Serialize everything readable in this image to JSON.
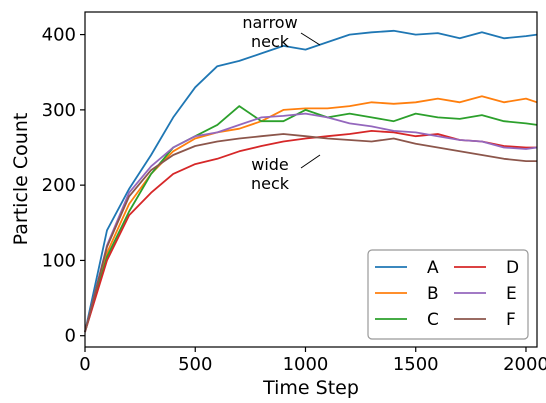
{
  "chart_data": {
    "type": "line",
    "title": "",
    "xlabel": "Time Step",
    "ylabel": "Particle Count",
    "xlim": [
      0,
      2050
    ],
    "ylim": [
      -15,
      430
    ],
    "xticks": [
      0,
      500,
      1000,
      1500,
      2000
    ],
    "yticks": [
      0,
      100,
      200,
      300,
      400
    ],
    "grid": false,
    "legend_position": "lower-right",
    "legend_columns": 2,
    "annotations": [
      {
        "lines": [
          "narrow",
          "neck"
        ],
        "points_to": [
          1070,
          385
        ]
      },
      {
        "lines": [
          "wide",
          "neck"
        ],
        "points_to": [
          1050,
          275
        ]
      }
    ],
    "x": [
      0,
      100,
      200,
      300,
      400,
      500,
      600,
      700,
      800,
      900,
      1000,
      1100,
      1200,
      1300,
      1400,
      1500,
      1600,
      1700,
      1800,
      1900,
      2000,
      2050
    ],
    "series": [
      {
        "name": "A",
        "color": "#1f77b4",
        "values": [
          5,
          140,
          195,
          240,
          290,
          330,
          358,
          365,
          375,
          385,
          380,
          390,
          400,
          403,
          405,
          400,
          402,
          395,
          403,
          395,
          398,
          400
        ]
      },
      {
        "name": "B",
        "color": "#ff7f0e",
        "values": [
          5,
          110,
          175,
          215,
          245,
          262,
          270,
          275,
          285,
          300,
          302,
          302,
          305,
          310,
          308,
          310,
          315,
          310,
          318,
          310,
          315,
          310
        ]
      },
      {
        "name": "C",
        "color": "#2ca02c",
        "values": [
          5,
          105,
          165,
          215,
          250,
          265,
          280,
          305,
          285,
          285,
          300,
          290,
          295,
          290,
          285,
          295,
          290,
          288,
          293,
          285,
          282,
          280
        ]
      },
      {
        "name": "D",
        "color": "#d62728",
        "values": [
          5,
          100,
          160,
          190,
          215,
          228,
          235,
          245,
          252,
          258,
          262,
          265,
          268,
          272,
          270,
          265,
          268,
          260,
          258,
          252,
          250,
          250
        ]
      },
      {
        "name": "E",
        "color": "#9467bd",
        "values": [
          5,
          120,
          190,
          225,
          250,
          265,
          270,
          280,
          290,
          292,
          295,
          290,
          282,
          278,
          272,
          270,
          265,
          260,
          258,
          250,
          248,
          250
        ]
      },
      {
        "name": "F",
        "color": "#8c564b",
        "values": [
          5,
          118,
          185,
          220,
          240,
          252,
          258,
          262,
          265,
          268,
          265,
          262,
          260,
          258,
          262,
          255,
          250,
          245,
          240,
          235,
          232,
          232
        ]
      }
    ]
  }
}
